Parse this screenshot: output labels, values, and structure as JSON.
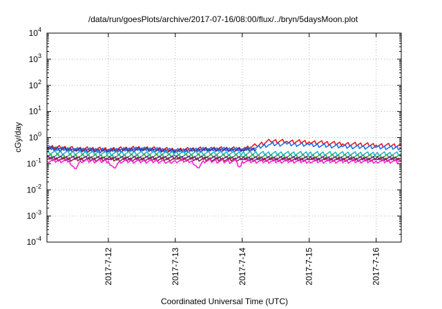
{
  "chart_data": {
    "type": "line",
    "title": "/data/run/goesPlots/archive/2017-07-16/08:00/flux/../bryn/5daysMoon.plot",
    "xlabel": "Coordinated Universal Time (UTC)",
    "ylabel": "cGy/day",
    "yscale": "log",
    "ylim": [
      0.0001,
      10000
    ],
    "xlim": [
      "2017-07-11T02:00",
      "2017-07-16T09:00"
    ],
    "grid": true,
    "legend": "none",
    "y_ticks": [
      {
        "base": "10",
        "exp": "-4",
        "value": 0.0001
      },
      {
        "base": "10",
        "exp": "-3",
        "value": 0.001
      },
      {
        "base": "10",
        "exp": "-2",
        "value": 0.01
      },
      {
        "base": "10",
        "exp": "-1",
        "value": 0.1
      },
      {
        "base": "10",
        "exp": "0",
        "value": 1
      },
      {
        "base": "10",
        "exp": "1",
        "value": 10
      },
      {
        "base": "10",
        "exp": "2",
        "value": 100
      },
      {
        "base": "10",
        "exp": "3",
        "value": 1000
      },
      {
        "base": "10",
        "exp": "4",
        "value": 10000
      }
    ],
    "x_ticks": [
      {
        "label": "2017-7-12",
        "value": "2017-07-12T00:00"
      },
      {
        "label": "2017-7-13",
        "value": "2017-07-13T00:00"
      },
      {
        "label": "2017-7-14",
        "value": "2017-07-14T00:00"
      },
      {
        "label": "2017-7-15",
        "value": "2017-07-15T00:00"
      },
      {
        "label": "2017-7-16",
        "value": "2017-07-16T00:00"
      }
    ],
    "series": [
      {
        "color": "#e8161b",
        "x": [
          "2017-07-11T02:00",
          "2017-07-11T12:00",
          "2017-07-12T00:00",
          "2017-07-12T12:00",
          "2017-07-13T00:00",
          "2017-07-13T12:00",
          "2017-07-14T00:00",
          "2017-07-14T05:00",
          "2017-07-14T10:00",
          "2017-07-14T16:00",
          "2017-07-15T00:00",
          "2017-07-15T12:00",
          "2017-07-16T00:00",
          "2017-07-16T09:00"
        ],
        "y": [
          0.45,
          0.38,
          0.36,
          0.4,
          0.34,
          0.38,
          0.37,
          0.5,
          0.75,
          0.72,
          0.68,
          0.58,
          0.52,
          0.5
        ]
      },
      {
        "color": "#1f6fe8",
        "x": [
          "2017-07-11T02:00",
          "2017-07-11T12:00",
          "2017-07-12T00:00",
          "2017-07-12T12:00",
          "2017-07-13T00:00",
          "2017-07-13T12:00",
          "2017-07-14T00:00",
          "2017-07-14T05:00",
          "2017-07-14T10:00",
          "2017-07-14T16:00",
          "2017-07-15T00:00",
          "2017-07-15T12:00",
          "2017-07-16T00:00",
          "2017-07-16T09:00"
        ],
        "y": [
          0.4,
          0.35,
          0.33,
          0.37,
          0.32,
          0.36,
          0.35,
          0.4,
          0.55,
          0.56,
          0.52,
          0.45,
          0.42,
          0.4
        ]
      },
      {
        "color": "#2f3ea8",
        "x": [
          "2017-07-11T02:00",
          "2017-07-11T12:00",
          "2017-07-12T00:00",
          "2017-07-12T12:00",
          "2017-07-13T00:00",
          "2017-07-13T12:00",
          "2017-07-14T00:00",
          "2017-07-14T05:00"
        ],
        "y": [
          0.38,
          0.33,
          0.31,
          0.35,
          0.3,
          0.34,
          0.33,
          0.36
        ]
      },
      {
        "color": "#27b3c4",
        "x": [
          "2017-07-11T02:00",
          "2017-07-12T00:00",
          "2017-07-13T00:00",
          "2017-07-14T00:00",
          "2017-07-15T00:00",
          "2017-07-16T00:00",
          "2017-07-16T09:00"
        ],
        "y": [
          0.27,
          0.25,
          0.26,
          0.25,
          0.25,
          0.24,
          0.24
        ]
      },
      {
        "color": "#3aa845",
        "x": [
          "2017-07-11T02:00",
          "2017-07-12T00:00",
          "2017-07-13T00:00",
          "2017-07-14T00:00",
          "2017-07-15T00:00",
          "2017-07-16T00:00",
          "2017-07-16T09:00"
        ],
        "y": [
          0.2,
          0.19,
          0.2,
          0.19,
          0.19,
          0.19,
          0.19
        ]
      },
      {
        "color": "#6a2aa3",
        "x": [
          "2017-07-11T02:00",
          "2017-07-12T00:00",
          "2017-07-13T00:00",
          "2017-07-14T00:00",
          "2017-07-15T00:00",
          "2017-07-16T00:00",
          "2017-07-16T09:00"
        ],
        "y": [
          0.17,
          0.16,
          0.17,
          0.16,
          0.16,
          0.16,
          0.16
        ]
      },
      {
        "color": "#8b2a3a",
        "x": [
          "2017-07-11T02:00",
          "2017-07-12T00:00",
          "2017-07-13T00:00",
          "2017-07-14T00:00",
          "2017-07-15T00:00",
          "2017-07-16T00:00",
          "2017-07-16T09:00"
        ],
        "y": [
          0.15,
          0.145,
          0.15,
          0.145,
          0.145,
          0.145,
          0.145
        ]
      },
      {
        "color": "#ff1fd2",
        "x": [
          "2017-07-11T02:00",
          "2017-07-11T10:00",
          "2017-07-11T12:00",
          "2017-07-11T14:00",
          "2017-07-12T00:00",
          "2017-07-12T02:00",
          "2017-07-12T04:00",
          "2017-07-12T20:00",
          "2017-07-12T22:00",
          "2017-07-13T00:00",
          "2017-07-13T06:00",
          "2017-07-13T08:00",
          "2017-07-13T10:00",
          "2017-07-13T22:00",
          "2017-07-13T23:00",
          "2017-07-14T00:00",
          "2017-07-15T00:00",
          "2017-07-16T00:00",
          "2017-07-16T09:00"
        ],
        "y": [
          0.13,
          0.13,
          0.065,
          0.13,
          0.125,
          0.07,
          0.125,
          0.125,
          0.12,
          0.13,
          0.13,
          0.07,
          0.13,
          0.12,
          0.075,
          0.125,
          0.125,
          0.125,
          0.125
        ]
      }
    ]
  }
}
